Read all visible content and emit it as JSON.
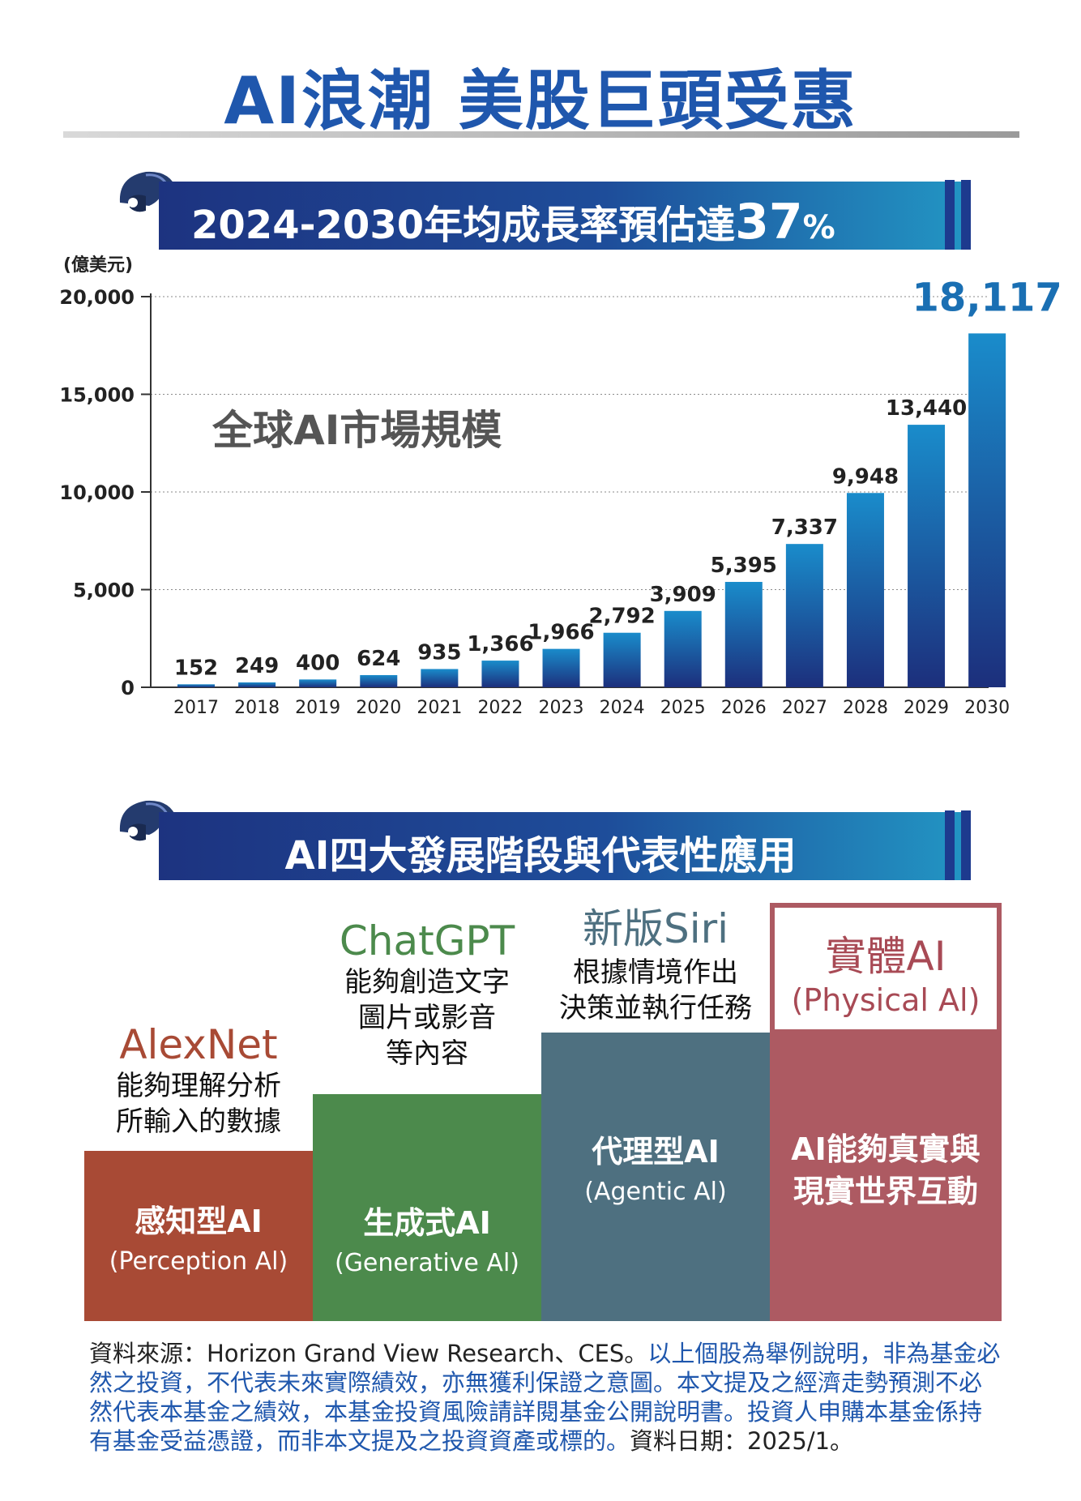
{
  "title": "AI浪潮 美股巨頭受惠",
  "section1": {
    "banner_prefix": "2024-2030年均成長率預估達",
    "banner_highlight": "37",
    "banner_suffix": "%"
  },
  "chart_data": {
    "type": "bar",
    "unit_label": "(億美元)",
    "annotation": "全球AI市場規模",
    "categories": [
      "2017",
      "2018",
      "2019",
      "2020",
      "2021",
      "2022",
      "2023",
      "2024",
      "2025",
      "2026",
      "2027",
      "2028",
      "2029",
      "2030"
    ],
    "values": [
      152,
      249,
      400,
      624,
      935,
      1366,
      1966,
      2792,
      3909,
      5395,
      7337,
      9948,
      13440,
      18117
    ],
    "value_labels": [
      "152",
      "249",
      "400",
      "624",
      "935",
      "1,366",
      "1,966",
      "2,792",
      "3,909",
      "5,395",
      "7,337",
      "9,948",
      "13,440",
      "18,117"
    ],
    "y_ticks": [
      "0",
      "5,000",
      "10,000",
      "15,000",
      "20,000"
    ],
    "ylim": [
      0,
      20000
    ],
    "grid": true,
    "colors": {
      "bar_top": "#1a8ccb",
      "bar_bottom": "#1c2f7c",
      "highlight": "#1a6fb3"
    }
  },
  "section2": {
    "banner": "AI四大發展階段與代表性應用",
    "stages": [
      {
        "name": "感知型AI",
        "en": "(Perception Al)",
        "example": "AlexNet",
        "desc": [
          "能夠理解分析",
          "所輸入的數據"
        ],
        "color": "#a84a35",
        "example_color": "#a84a35"
      },
      {
        "name": "生成式AI",
        "en": "(Generative Al)",
        "example": "ChatGPT",
        "desc": [
          "能夠創造文字",
          "圖片或影音",
          "等內容"
        ],
        "color": "#4c8a4c",
        "example_color": "#4c8a4c"
      },
      {
        "name": "代理型AI",
        "en": "(Agentic Al)",
        "example": "新版Siri",
        "desc": [
          "根據情境作出",
          "決策並執行任務"
        ],
        "color": "#4e7080",
        "example_color": "#4e7080"
      },
      {
        "name_lines": [
          "AI能夠真實與",
          "現實世界互動"
        ],
        "example": "實體AI",
        "example_en": "(Physical Al)",
        "color": "#ad5a62",
        "example_color": "#a84a55"
      }
    ]
  },
  "disclaimer": {
    "part1": "資料來源：Horizon Grand View Research、CES。",
    "part2": "以上個股為舉例說明，非為基金必然之投資，不代表未來實際績效，亦無獲利保證之意圖。本文提及之經濟走勢預測不必然代表本基金之績效，本基金投資風險請詳閱基金公開說明書。投資人申購本基金係持有基金受益憑證，而非本文提及之投資資產或標的。",
    "part3": "資料日期：2025/1。"
  }
}
